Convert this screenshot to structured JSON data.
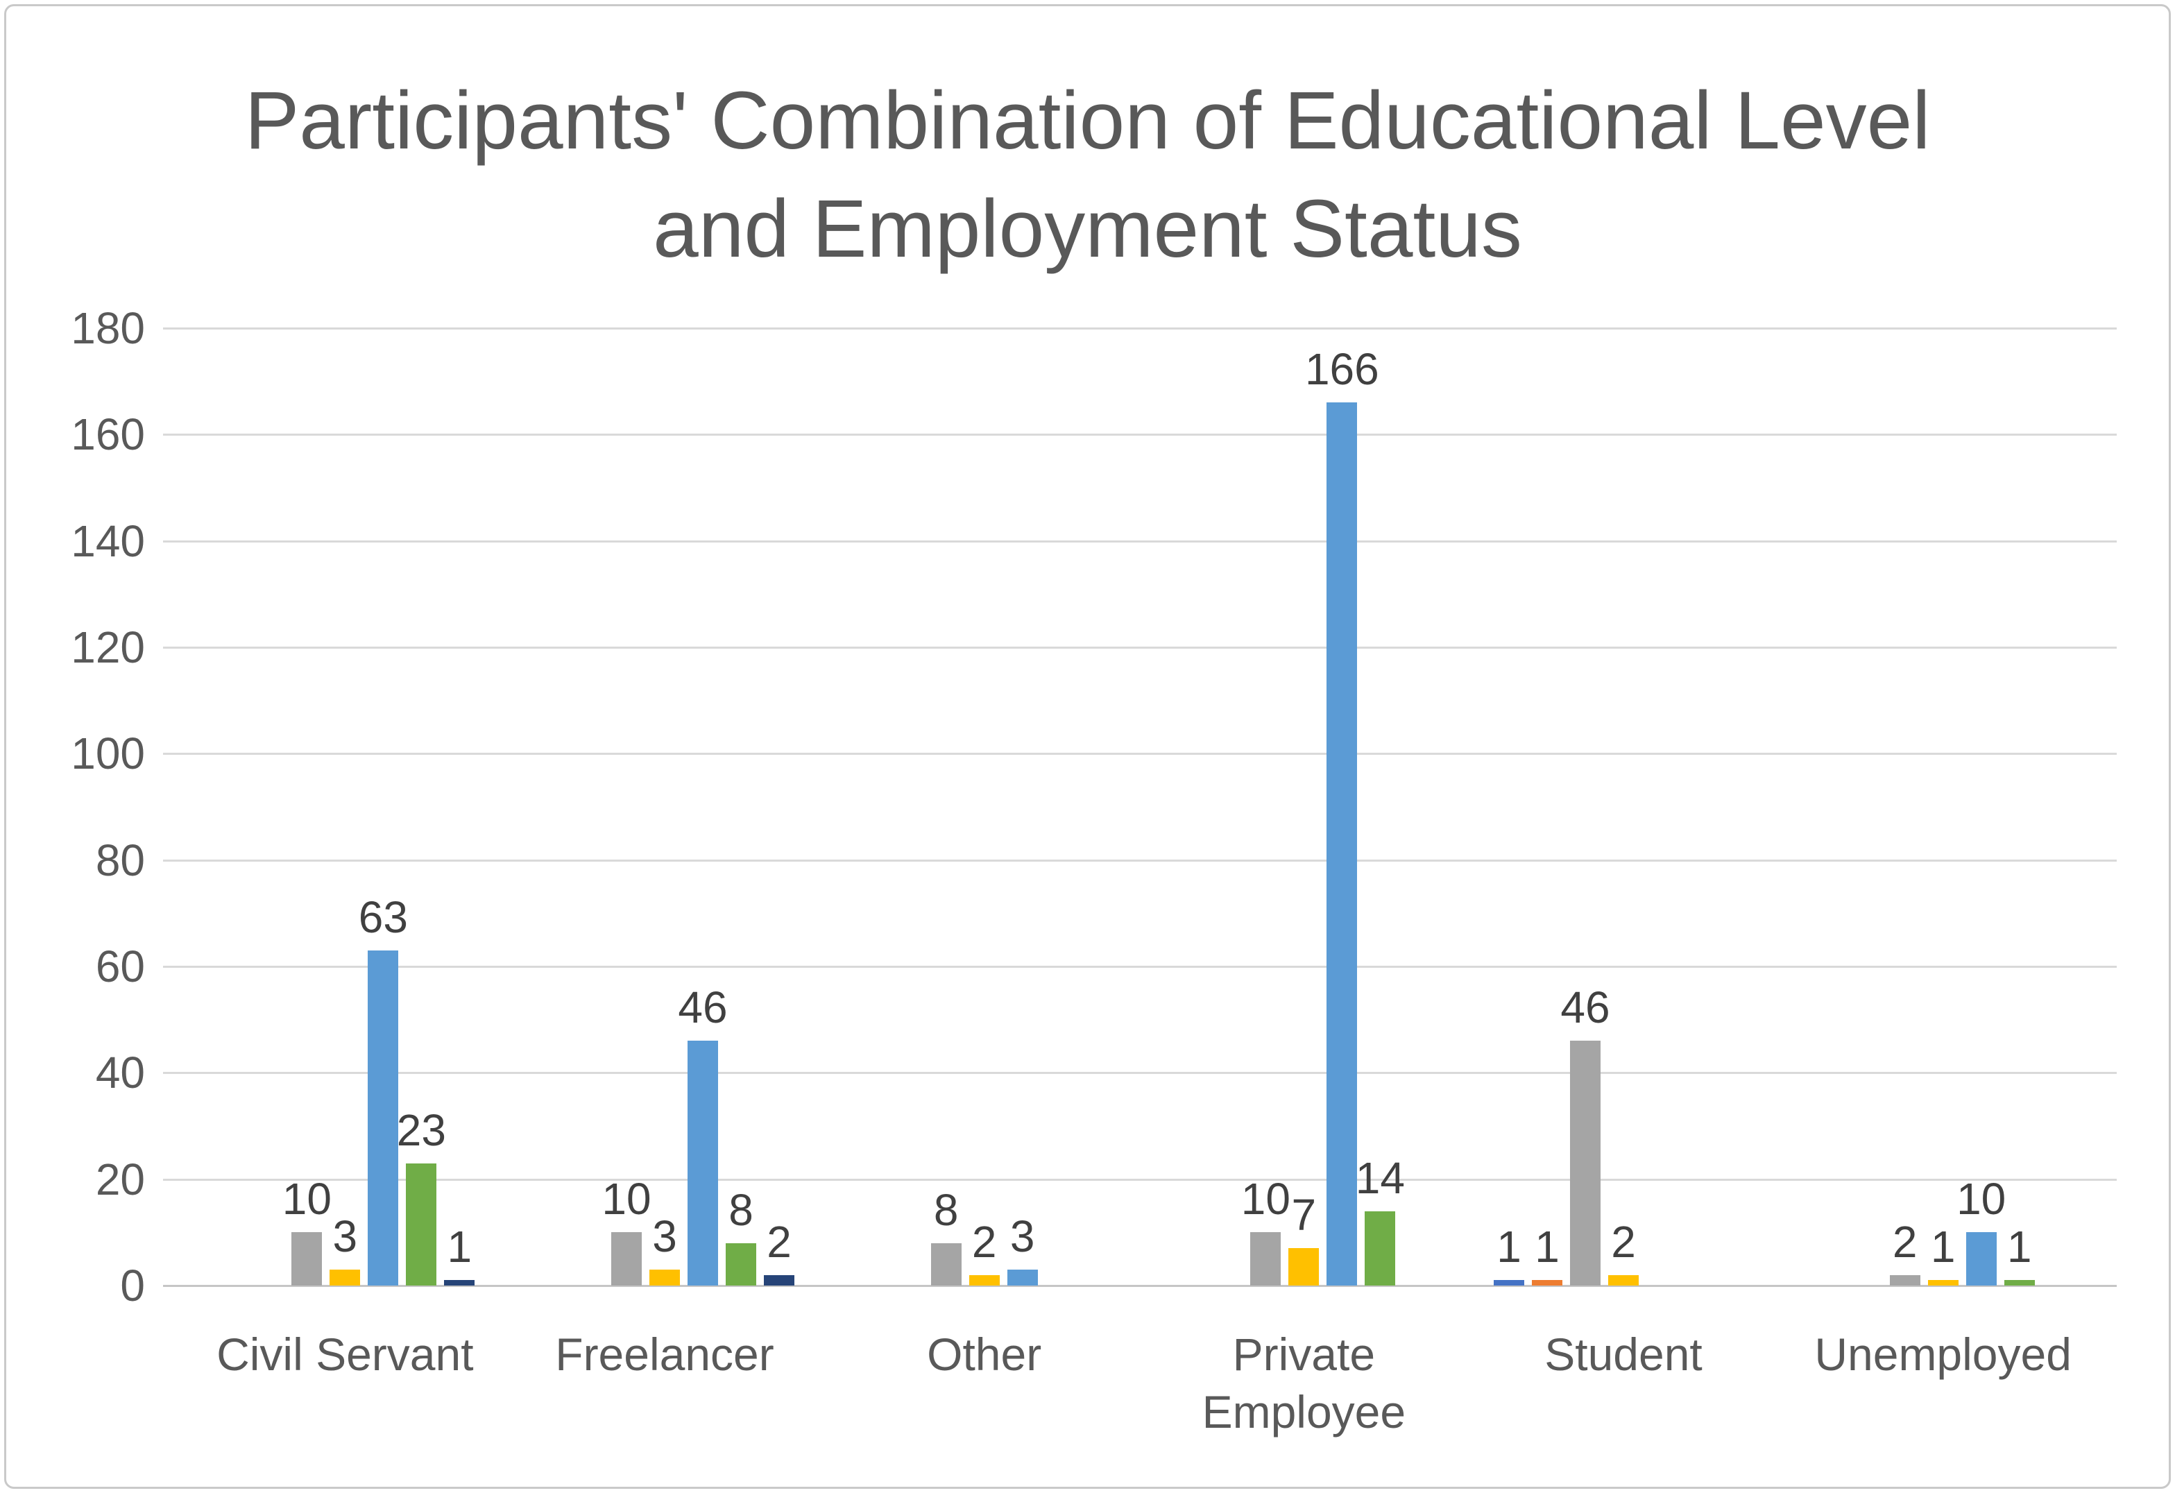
{
  "title": {
    "line1": "Participants' Combination of Educational Level",
    "line2": "and Employment Status"
  },
  "chart_data": {
    "type": "bar",
    "title": "Participants' Combination of Educational Level and Employment Status",
    "categories": [
      "Civil Servant",
      "Freelancer",
      "Other",
      "Private Employee",
      "Student",
      "Unemployed"
    ],
    "series": [
      {
        "name": "series-blue",
        "color": "#4472C4",
        "values": [
          null,
          null,
          null,
          null,
          1,
          null
        ]
      },
      {
        "name": "series-orange",
        "color": "#ED7D31",
        "values": [
          null,
          null,
          null,
          null,
          1,
          null
        ]
      },
      {
        "name": "series-gray",
        "color": "#A5A5A5",
        "values": [
          10,
          10,
          8,
          10,
          46,
          2
        ]
      },
      {
        "name": "series-gold",
        "color": "#FFC000",
        "values": [
          3,
          3,
          2,
          7,
          2,
          1
        ]
      },
      {
        "name": "series-lightblue",
        "color": "#5B9BD5",
        "values": [
          63,
          46,
          3,
          166,
          null,
          10
        ]
      },
      {
        "name": "series-green",
        "color": "#70AD47",
        "values": [
          23,
          8,
          null,
          14,
          null,
          1
        ]
      },
      {
        "name": "series-darknavy",
        "color": "#264478",
        "values": [
          1,
          2,
          null,
          null,
          null,
          null
        ]
      }
    ],
    "yticks": [
      0,
      20,
      40,
      60,
      80,
      100,
      120,
      140,
      160,
      180
    ],
    "ylim": [
      0,
      180
    ],
    "ytick_interval": 20,
    "xlabel": "",
    "ylabel": "",
    "grid": true,
    "legend_position": "none",
    "data_labels": true
  }
}
